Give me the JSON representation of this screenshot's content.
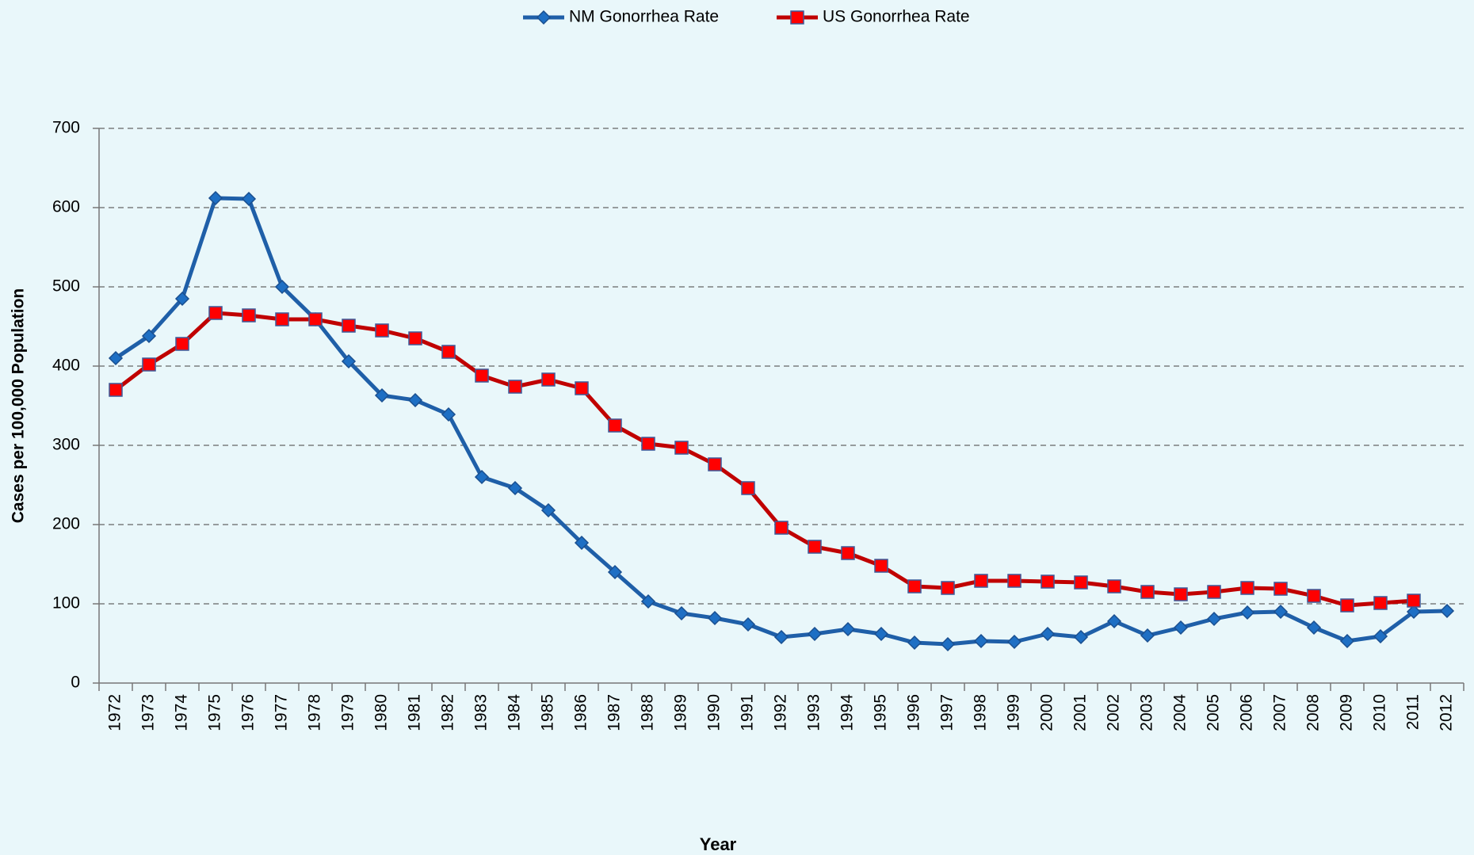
{
  "chart_data": {
    "type": "line",
    "x_label": "Year",
    "y_label": "Cases per 100,000 Population",
    "categories": [
      "1972",
      "1973",
      "1974",
      "1975",
      "1976",
      "1977",
      "1978",
      "1979",
      "1980",
      "1981",
      "1982",
      "1983",
      "1984",
      "1985",
      "1986",
      "1987",
      "1988",
      "1989",
      "1990",
      "1991",
      "1992",
      "1993",
      "1994",
      "1995",
      "1996",
      "1997",
      "1998",
      "1999",
      "2000",
      "2001",
      "2002",
      "2003",
      "2004",
      "2005",
      "2006",
      "2007",
      "2008",
      "2009",
      "2010",
      "2011",
      "2012"
    ],
    "series": [
      {
        "name": "NM Gonorrhea Rate",
        "color": "#1f5fa8",
        "marker": "diamond",
        "values": [
          410,
          438,
          485,
          612,
          611,
          500,
          459,
          406,
          363,
          357,
          339,
          260,
          246,
          218,
          177,
          140,
          103,
          88,
          82,
          74,
          58,
          62,
          68,
          62,
          51,
          49,
          53,
          52,
          62,
          58,
          78,
          60,
          70,
          81,
          89,
          90,
          70,
          53,
          59,
          90,
          91
        ]
      },
      {
        "name": "US Gonorrhea Rate",
        "color": "#c00000",
        "marker": "square",
        "values": [
          370,
          402,
          428,
          467,
          464,
          459,
          459,
          451,
          445,
          435,
          418,
          388,
          374,
          383,
          372,
          325,
          302,
          297,
          276,
          246,
          196,
          172,
          164,
          148,
          122,
          120,
          129,
          129,
          128,
          127,
          122,
          115,
          112,
          115,
          120,
          119,
          110,
          98,
          101,
          104,
          null
        ]
      }
    ],
    "ylim": [
      0,
      700
    ],
    "yticks": [
      0,
      100,
      200,
      300,
      400,
      500,
      600,
      700
    ],
    "grid": true,
    "legend": "top"
  }
}
